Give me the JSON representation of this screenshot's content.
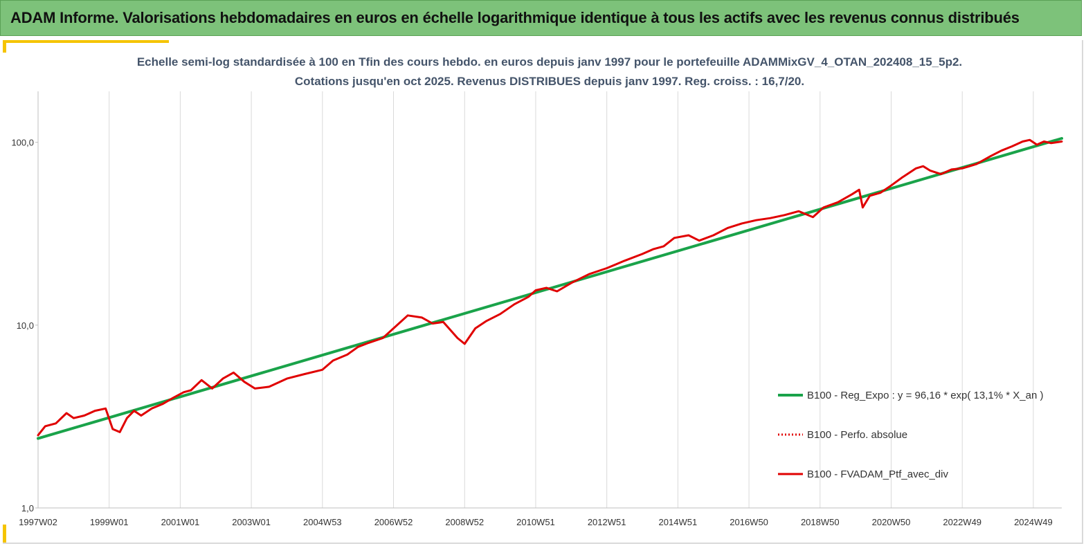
{
  "banner": {
    "title": "ADAM Informe. Valorisations hebdomadaires en euros en échelle logarithmique identique à tous les actifs avec les revenus connus distribués"
  },
  "colors": {
    "banner": "#7dc27a",
    "regression": "#1aa34a",
    "portfolio": "#e00000",
    "accent": "#f5c400"
  },
  "chart_data": {
    "type": "line",
    "title": "Echelle semi-log standardisée  à 100 en Tfin des cours hebdo.  en euros depuis janv 1997 pour le portefeuille ADAMMixGV_4_OTAN_202408_15_5p2.",
    "subtitle": "Cotations jusqu'en oct 2025. Revenus DISTRIBUES depuis janv 1997. Reg. croiss. : 16,7/20.",
    "y_scale": "log",
    "ylim": [
      1,
      190
    ],
    "y_ticks": [
      "1,0",
      "10,0",
      "100,0"
    ],
    "y_tick_values": [
      1,
      10,
      100
    ],
    "xlim": [
      1997.0,
      2025.8
    ],
    "x_tick_labels": [
      "1997W02",
      "1999W01",
      "2001W01",
      "2003W01",
      "2004W53",
      "2006W52",
      "2008W52",
      "2010W51",
      "2012W51",
      "2014W51",
      "2016W50",
      "2018W50",
      "2020W50",
      "2022W49",
      "2024W49"
    ],
    "x_tick_values": [
      1997.0,
      1999.0,
      2001.0,
      2003.0,
      2005.0,
      2007.0,
      2009.0,
      2011.0,
      2013.0,
      2015.0,
      2017.0,
      2019.0,
      2021.0,
      2023.0,
      2025.0
    ],
    "grid": "vertical",
    "legend_position": "right",
    "series": [
      {
        "name": "B100 - Reg_Expo : y = 96,16 * exp( 13,1% *  X_an )",
        "style": "solid-green",
        "x": [
          1997.0,
          2025.8
        ],
        "values": [
          2.4,
          105
        ]
      },
      {
        "name": "B100 - Perfo. absolue",
        "style": "dotted-red",
        "x": [],
        "values": []
      },
      {
        "name": "B100 - FVADAM_Ptf_avec_div",
        "style": "solid-red",
        "x": [
          1997.0,
          1997.2,
          1997.5,
          1997.8,
          1998.0,
          1998.3,
          1998.6,
          1998.9,
          1999.1,
          1999.3,
          1999.5,
          1999.7,
          1999.9,
          2000.2,
          2000.5,
          2000.8,
          2001.1,
          2001.3,
          2001.6,
          2001.9,
          2002.2,
          2002.5,
          2002.8,
          2003.1,
          2003.5,
          2004.0,
          2004.5,
          2005.0,
          2005.3,
          2005.7,
          2006.0,
          2006.3,
          2006.7,
          2007.0,
          2007.4,
          2007.8,
          2008.1,
          2008.4,
          2008.8,
          2009.0,
          2009.3,
          2009.6,
          2010.0,
          2010.4,
          2010.8,
          2011.0,
          2011.3,
          2011.6,
          2012.0,
          2012.5,
          2013.0,
          2013.5,
          2014.0,
          2014.3,
          2014.6,
          2014.9,
          2015.3,
          2015.6,
          2016.0,
          2016.4,
          2016.8,
          2017.2,
          2017.6,
          2018.0,
          2018.4,
          2018.8,
          2019.1,
          2019.5,
          2019.9,
          2020.1,
          2020.2,
          2020.4,
          2020.7,
          2021.0,
          2021.3,
          2021.7,
          2021.9,
          2022.1,
          2022.4,
          2022.7,
          2023.0,
          2023.4,
          2023.8,
          2024.1,
          2024.4,
          2024.7,
          2024.9,
          2025.1,
          2025.3,
          2025.5,
          2025.8
        ],
        "values": [
          2.5,
          2.8,
          2.9,
          3.3,
          3.1,
          3.2,
          3.4,
          3.5,
          2.7,
          2.6,
          3.1,
          3.4,
          3.2,
          3.5,
          3.7,
          4.0,
          4.3,
          4.4,
          5.0,
          4.5,
          5.1,
          5.5,
          4.9,
          4.5,
          4.6,
          5.1,
          5.4,
          5.7,
          6.4,
          6.9,
          7.6,
          8.0,
          8.5,
          9.6,
          11.3,
          11.0,
          10.2,
          10.4,
          8.5,
          7.9,
          9.6,
          10.5,
          11.5,
          13.0,
          14.3,
          15.5,
          16.0,
          15.3,
          17.0,
          19.0,
          20.5,
          22.5,
          24.5,
          26.0,
          27.0,
          30.0,
          31.0,
          29.0,
          31.0,
          34.0,
          36.0,
          37.5,
          38.5,
          40.0,
          42.0,
          39.0,
          44.0,
          47.0,
          52.0,
          55.0,
          44.0,
          51.0,
          53.0,
          58.0,
          64.0,
          72.0,
          74.0,
          70.0,
          67.0,
          71.0,
          72.0,
          76.0,
          84.0,
          90.0,
          95.0,
          101.0,
          103.0,
          97.0,
          101.0,
          99.0,
          101.0
        ]
      }
    ]
  }
}
